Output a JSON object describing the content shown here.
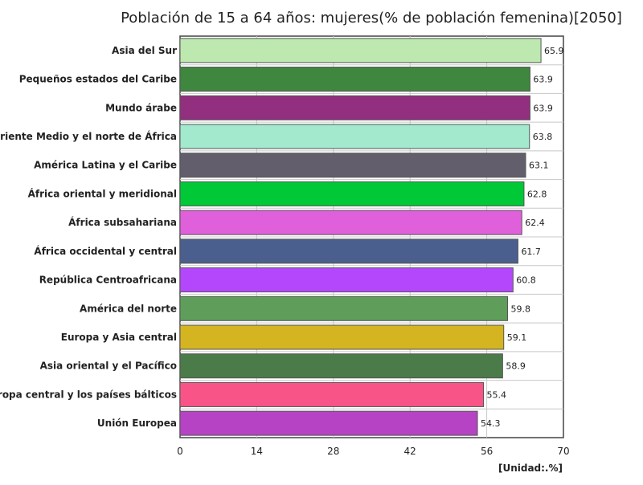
{
  "chart_data": {
    "type": "bar",
    "orientation": "horizontal",
    "title": "Población de 15 a 64 años: mujeres(% de población femenina)[2050]",
    "unit_label": "[Unidad:.%]",
    "xlim": [
      0,
      70
    ],
    "xticks": [
      0,
      14,
      28,
      42,
      56,
      70
    ],
    "grid": true,
    "categories": [
      "Asia del Sur",
      "Pequeños estados del Caribe",
      "Mundo árabe",
      "Oriente Medio y el norte de África",
      "América Latina y el Caribe",
      "África oriental y meridional",
      "África subsahariana",
      "África occidental y central",
      "República Centroafricana",
      "América del norte",
      "Europa y Asia central",
      "Asia oriental y el Pacífico",
      "Europa central y los países bálticos",
      "Unión Europea"
    ],
    "values": [
      65.9,
      63.9,
      63.9,
      63.8,
      63.1,
      62.8,
      62.4,
      61.7,
      60.8,
      59.8,
      59.1,
      58.9,
      55.4,
      54.3
    ],
    "value_labels": [
      "65.9",
      "63.9",
      "63.9",
      "63.8",
      "63.1",
      "62.8",
      "62.4",
      "61.7",
      "60.8",
      "59.8",
      "59.1",
      "58.9",
      "55.4",
      "54.3"
    ],
    "colors": [
      "#bde8b0",
      "#3f863e",
      "#922f7e",
      "#a2e9ce",
      "#625e6c",
      "#00c837",
      "#e060db",
      "#4a5f8d",
      "#b447fc",
      "#5e9e5a",
      "#d4b421",
      "#4a7b48",
      "#f95487",
      "#b643c3"
    ]
  }
}
